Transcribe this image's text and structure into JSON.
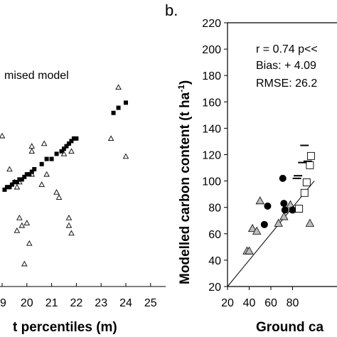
{
  "chart_data": [
    {
      "type": "scatter",
      "panel": "a",
      "legend_fragment": "mised model",
      "xlabel_fragment": "t percentiles (m)",
      "xticks": [
        "9",
        "20",
        "21",
        "22",
        "23",
        "24",
        "25"
      ],
      "xlim": [
        18.9,
        25.0
      ],
      "ylim": [
        0,
        1
      ],
      "series": [
        {
          "marker": "triangle",
          "x": [
            19.0,
            19.3,
            19.5,
            19.6,
            19.6,
            19.7,
            19.7,
            19.8,
            19.9,
            20.0,
            20.1,
            20.2,
            20.2,
            20.2,
            20.6,
            20.7,
            20.8,
            21.2,
            21.3,
            21.5,
            21.7,
            21.7,
            21.8,
            21.8,
            23.4,
            23.7,
            24.0
          ],
          "y": [
            0.58,
            0.45,
            0.4,
            0.21,
            0.38,
            0.26,
            0.4,
            0.23,
            0.08,
            0.24,
            0.16,
            0.43,
            0.54,
            0.52,
            0.39,
            0.55,
            0.43,
            0.36,
            0.34,
            0.51,
            0.23,
            0.26,
            0.2,
            0.52,
            0.57,
            0.77,
            0.5
          ]
        },
        {
          "marker": "square",
          "x": [
            19.1,
            19.2,
            19.3,
            19.4,
            19.5,
            19.6,
            19.7,
            19.8,
            19.9,
            20.0,
            20.1,
            20.2,
            20.3,
            20.6,
            20.8,
            21.0,
            21.2,
            21.4,
            21.5,
            21.6,
            21.7,
            21.8,
            21.9,
            22.0,
            23.5,
            23.7,
            24.0
          ],
          "y": [
            0.37,
            0.38,
            0.38,
            0.39,
            0.4,
            0.4,
            0.41,
            0.41,
            0.42,
            0.43,
            0.43,
            0.44,
            0.45,
            0.47,
            0.49,
            0.49,
            0.51,
            0.52,
            0.53,
            0.54,
            0.55,
            0.56,
            0.57,
            0.57,
            0.67,
            0.69,
            0.71
          ]
        }
      ]
    },
    {
      "type": "scatter",
      "panel": "b",
      "panel_label": "b.",
      "ylabel": "Modelled carbon content (t ha",
      "ylabel_sup": "-1",
      "ylabel_close": ")",
      "xlabel_fragment": "Ground ca",
      "xlim": [
        20,
        100
      ],
      "ylim": [
        20,
        220
      ],
      "xticks": [
        20,
        40,
        60,
        80
      ],
      "yticks": [
        20,
        40,
        60,
        80,
        100,
        120,
        140,
        160,
        180,
        200,
        220
      ],
      "annotations": [
        "r = 0.74 p<<",
        "Bias: + 4.09",
        "RMSE: 26.2"
      ],
      "one_to_one_line": [
        [
          20,
          20
        ],
        [
          100,
          100
        ]
      ],
      "series": [
        {
          "marker": "triangle-filled-grey",
          "x": [
            38,
            40,
            43,
            47,
            50,
            67,
            72,
            78,
            96
          ],
          "y": [
            47,
            47,
            64,
            62,
            85,
            68,
            73,
            82,
            68
          ]
        },
        {
          "marker": "circle-filled",
          "x": [
            54,
            57,
            71,
            72,
            73,
            80
          ],
          "y": [
            67,
            81,
            102,
            83,
            78,
            78
          ]
        },
        {
          "marker": "square-open",
          "x": [
            86,
            91,
            93,
            96,
            97
          ],
          "y": [
            79,
            91,
            99,
            112,
            119
          ]
        },
        {
          "marker": "dash",
          "x": [
            84,
            85,
            89,
            91,
            94
          ],
          "y": [
            102,
            104,
            114,
            127,
            115
          ]
        }
      ]
    }
  ]
}
